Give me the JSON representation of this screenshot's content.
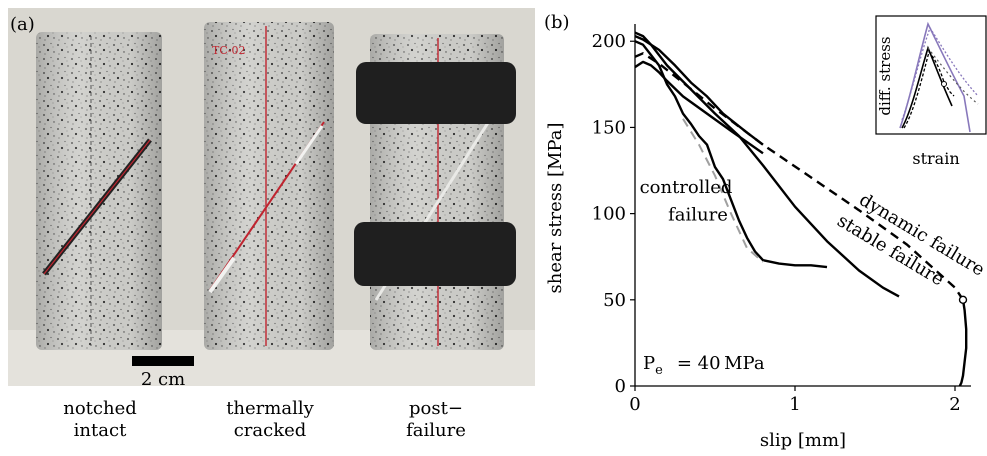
{
  "photo": {
    "label": "(a)",
    "scale_bar": "2 cm",
    "samples": [
      {
        "line1": "notched",
        "line2": "intact"
      },
      {
        "line1": "thermally",
        "line2": "cracked"
      },
      {
        "line1": "post−",
        "line2": "failure"
      }
    ],
    "colors": {
      "backdrop": "#d8d6cf",
      "granite": "#cfcfcb",
      "tape": "#1f1f1f",
      "marker": "#c0242f"
    }
  },
  "chart_data": {
    "type": "line",
    "panel_label": "(b)",
    "xlabel": "slip [mm]",
    "ylabel": "shear stress [MPa]",
    "xlim": [
      0,
      2.1
    ],
    "ylim": [
      0,
      210
    ],
    "xticks": [
      0,
      1,
      2
    ],
    "yticks": [
      0,
      50,
      100,
      150,
      200
    ],
    "grid": false,
    "series": [
      {
        "name": "dynamic failure",
        "style": "dashed",
        "color": "#000000",
        "x": [
          0,
          0.05,
          0.15,
          0.3,
          0.5,
          0.8,
          1.1,
          1.4,
          1.7,
          2.0,
          2.05
        ],
        "y": [
          191,
          193,
          187,
          176,
          161,
          140,
          121,
          102,
          82,
          57,
          50
        ]
      },
      {
        "name": "",
        "style": "solid",
        "color": "#000000",
        "x": [
          2.05,
          2.06,
          2.07,
          2.07,
          2.06,
          2.05,
          2.04,
          2.03
        ],
        "y": [
          50,
          44,
          33,
          22,
          14,
          6,
          2,
          0
        ]
      },
      {
        "name": "stable failure",
        "style": "solid",
        "color": "#000000",
        "x": [
          0,
          0.05,
          0.1,
          0.2,
          0.35,
          0.5,
          0.65,
          0.8,
          1.0,
          1.2,
          1.4,
          1.55,
          1.65
        ],
        "y": [
          205,
          203,
          198,
          186,
          172,
          158,
          145,
          128,
          104,
          84,
          67,
          57,
          52
        ]
      },
      {
        "name": "",
        "style": "solid",
        "color": "#000000",
        "x": [
          0,
          0.05,
          0.15,
          0.25,
          0.35,
          0.45,
          0.55,
          0.7,
          0.8
        ],
        "y": [
          203,
          201,
          195,
          186,
          176,
          168,
          158,
          147,
          140
        ]
      },
      {
        "name": "",
        "style": "solid",
        "color": "#000000",
        "x": [
          0,
          0.05,
          0.1,
          0.15,
          0.2,
          0.3,
          0.45,
          0.6,
          0.8
        ],
        "y": [
          185,
          188,
          186,
          182,
          177,
          168,
          158,
          148,
          135
        ]
      },
      {
        "name": "controlled failure",
        "style": "solid-jagged",
        "color": "#000000",
        "x": [
          0,
          0.05,
          0.1,
          0.15,
          0.2,
          0.25,
          0.3,
          0.35,
          0.4,
          0.45,
          0.5,
          0.55,
          0.6,
          0.65,
          0.7,
          0.75,
          0.8,
          0.9,
          1.0,
          1.1,
          1.2
        ],
        "y": [
          200,
          198,
          192,
          186,
          175,
          168,
          158,
          152,
          145,
          140,
          127,
          120,
          108,
          96,
          86,
          78,
          73,
          71,
          70,
          70,
          69
        ]
      },
      {
        "name": "",
        "style": "dashed",
        "color": "#a0a0a0",
        "x": [
          0.3,
          0.4,
          0.5,
          0.6,
          0.7,
          0.8
        ],
        "y": [
          155,
          140,
          122,
          100,
          80,
          72
        ]
      }
    ],
    "annotations": [
      {
        "text": "controlled",
        "x": 0.25,
        "y": 112
      },
      {
        "text": "failure",
        "x": 0.45,
        "y": 96
      },
      {
        "text": "dynamic failure",
        "x": 1.68,
        "y": 82
      },
      {
        "text": "stable failure",
        "x": 1.6,
        "y": 79
      },
      {
        "text": "P",
        "sub": "e",
        "value": "= 40 MPa",
        "x": 0.05,
        "y": 5
      }
    ],
    "inset": {
      "xlabel": "strain",
      "ylabel": "diff. stress",
      "colors": {
        "solid_black": "#000000",
        "purple": "#8878bb",
        "dotted": "#555555"
      }
    }
  }
}
